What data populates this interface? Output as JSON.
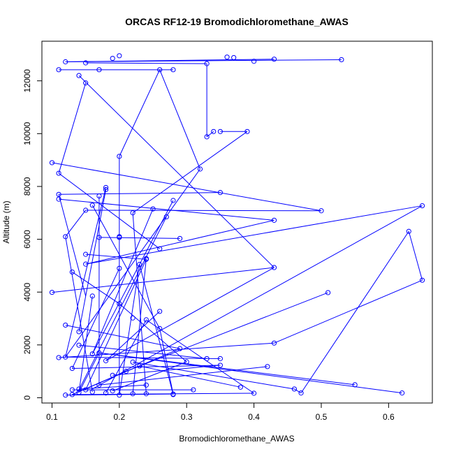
{
  "chart_data": {
    "type": "line",
    "title": "ORCAS RF12-19 Bromodichloromethane_AWAS",
    "xlabel": "Bromodichloromethane_AWAS",
    "ylabel": "Altitude (m)",
    "xlim": [
      0.085,
      0.665
    ],
    "ylim": [
      -200,
      13500
    ],
    "xticks": [
      0.1,
      0.2,
      0.3,
      0.4,
      0.5,
      0.6
    ],
    "xtick_labels": [
      "0.1",
      "0.2",
      "0.3",
      "0.4",
      "0.5",
      "0.6"
    ],
    "yticks": [
      0,
      2000,
      4000,
      6000,
      8000,
      10000,
      12000
    ],
    "ytick_labels": [
      "0",
      "2000",
      "4000",
      "6000",
      "8000",
      "10000",
      "12000"
    ],
    "grid": false,
    "series": [
      {
        "color": "#0000ff",
        "marker": "open-circle",
        "points": [
          [
            0.2,
            12950
          ],
          [
            0.36,
            12900
          ],
          [
            0.37,
            12880
          ],
          [
            0.19,
            12850
          ],
          [
            0.43,
            12820
          ],
          [
            0.53,
            12800
          ],
          [
            0.12,
            12720
          ],
          [
            0.4,
            12740
          ],
          [
            0.15,
            12680
          ],
          [
            0.33,
            12650
          ],
          [
            0.11,
            12420
          ],
          [
            0.17,
            12420
          ],
          [
            0.26,
            12420
          ],
          [
            0.28,
            12420
          ],
          [
            0.14,
            12200
          ],
          [
            0.15,
            11920
          ],
          [
            0.11,
            8500
          ],
          [
            0.43,
            4930
          ],
          [
            0.33,
            9880
          ],
          [
            0.34,
            10080
          ],
          [
            0.35,
            10080
          ],
          [
            0.39,
            10080
          ],
          [
            0.2,
            9140
          ],
          [
            0.2,
            6100
          ],
          [
            0.32,
            8660
          ],
          [
            0.26,
            5640
          ],
          [
            0.1,
            8900
          ],
          [
            0.5,
            7080
          ],
          [
            0.11,
            7700
          ],
          [
            0.35,
            7770
          ],
          [
            0.11,
            7520
          ],
          [
            0.43,
            6720
          ],
          [
            0.18,
            7960
          ],
          [
            0.18,
            7880
          ],
          [
            0.17,
            7640
          ],
          [
            0.16,
            7290
          ],
          [
            0.15,
            7100
          ],
          [
            0.22,
            7000
          ],
          [
            0.25,
            7150
          ],
          [
            0.28,
            7470
          ],
          [
            0.27,
            6850
          ],
          [
            0.17,
            6070
          ],
          [
            0.2,
            6070
          ],
          [
            0.29,
            6030
          ],
          [
            0.12,
            6100
          ],
          [
            0.65,
            7270
          ],
          [
            0.15,
            5060
          ],
          [
            0.63,
            6300
          ],
          [
            0.65,
            4450
          ],
          [
            0.43,
            2070
          ],
          [
            0.11,
            1520
          ],
          [
            0.15,
            5430
          ],
          [
            0.24,
            5240
          ],
          [
            0.24,
            5270
          ],
          [
            0.23,
            5050
          ],
          [
            0.2,
            4900
          ],
          [
            0.13,
            4760
          ],
          [
            0.1,
            3990
          ],
          [
            0.51,
            3980
          ],
          [
            0.16,
            3850
          ],
          [
            0.2,
            3560
          ],
          [
            0.26,
            3270
          ],
          [
            0.24,
            2950
          ],
          [
            0.22,
            3020
          ],
          [
            0.26,
            2620
          ],
          [
            0.12,
            2750
          ],
          [
            0.14,
            2500
          ],
          [
            0.29,
            1860
          ],
          [
            0.14,
            1990
          ],
          [
            0.16,
            1660
          ],
          [
            0.17,
            1700
          ],
          [
            0.12,
            1540
          ],
          [
            0.18,
            1400
          ],
          [
            0.33,
            1480
          ],
          [
            0.35,
            1480
          ],
          [
            0.3,
            1360
          ],
          [
            0.35,
            1230
          ],
          [
            0.42,
            1180
          ],
          [
            0.22,
            1350
          ],
          [
            0.23,
            1200
          ],
          [
            0.13,
            1110
          ],
          [
            0.21,
            1000
          ],
          [
            0.19,
            850
          ],
          [
            0.24,
            480
          ],
          [
            0.17,
            480
          ],
          [
            0.38,
            400
          ],
          [
            0.55,
            490
          ],
          [
            0.46,
            330
          ],
          [
            0.14,
            330
          ],
          [
            0.13,
            300
          ],
          [
            0.15,
            300
          ],
          [
            0.31,
            300
          ],
          [
            0.19,
            260
          ],
          [
            0.16,
            220
          ],
          [
            0.18,
            180
          ],
          [
            0.22,
            150
          ],
          [
            0.24,
            150
          ],
          [
            0.28,
            140
          ],
          [
            0.28,
            120
          ],
          [
            0.4,
            170
          ],
          [
            0.47,
            180
          ],
          [
            0.62,
            180
          ],
          [
            0.12,
            100
          ],
          [
            0.13,
            120
          ],
          [
            0.2,
            100
          ],
          [
            0.14,
            200
          ]
        ],
        "segments": [
          [
            0.53,
            12800,
            0.12,
            12720
          ],
          [
            0.12,
            12720,
            0.43,
            12820
          ],
          [
            0.15,
            12680,
            0.33,
            12650
          ],
          [
            0.11,
            12420,
            0.28,
            12420
          ],
          [
            0.33,
            12650,
            0.33,
            9880
          ],
          [
            0.33,
            9880,
            0.34,
            10080
          ],
          [
            0.35,
            10080,
            0.39,
            10080
          ],
          [
            0.39,
            10080,
            0.22,
            7000
          ],
          [
            0.14,
            12200,
            0.43,
            4930
          ],
          [
            0.15,
            11920,
            0.11,
            8500
          ],
          [
            0.11,
            8500,
            0.26,
            5640
          ],
          [
            0.26,
            12420,
            0.32,
            8660
          ],
          [
            0.32,
            8660,
            0.12,
            1540
          ],
          [
            0.2,
            9140,
            0.26,
            12420
          ],
          [
            0.2,
            9140,
            0.2,
            6100
          ],
          [
            0.1,
            8900,
            0.5,
            7080
          ],
          [
            0.5,
            7080,
            0.15,
            7100
          ],
          [
            0.11,
            7700,
            0.35,
            7770
          ],
          [
            0.11,
            7520,
            0.43,
            6720
          ],
          [
            0.43,
            6720,
            0.15,
            5060
          ],
          [
            0.11,
            7700,
            0.15,
            3850
          ],
          [
            0.18,
            7960,
            0.12,
            1540
          ],
          [
            0.18,
            7880,
            0.14,
            2500
          ],
          [
            0.17,
            7640,
            0.17,
            480
          ],
          [
            0.16,
            7290,
            0.26,
            2620
          ],
          [
            0.15,
            7100,
            0.12,
            6100
          ],
          [
            0.12,
            6100,
            0.16,
            220
          ],
          [
            0.17,
            6070,
            0.29,
            6030
          ],
          [
            0.22,
            7000,
            0.24,
            150
          ],
          [
            0.25,
            7150,
            0.16,
            1660
          ],
          [
            0.28,
            7470,
            0.16,
            1660
          ],
          [
            0.27,
            6850,
            0.14,
            300
          ],
          [
            0.2,
            6070,
            0.2,
            100
          ],
          [
            0.65,
            7270,
            0.15,
            5060
          ],
          [
            0.65,
            7270,
            0.16,
            330
          ],
          [
            0.63,
            6300,
            0.65,
            4450
          ],
          [
            0.63,
            6300,
            0.47,
            180
          ],
          [
            0.65,
            4450,
            0.43,
            2070
          ],
          [
            0.43,
            2070,
            0.11,
            1520
          ],
          [
            0.43,
            4930,
            0.1,
            3990
          ],
          [
            0.43,
            4930,
            0.18,
            1400
          ],
          [
            0.15,
            5430,
            0.24,
            5240
          ],
          [
            0.24,
            5240,
            0.15,
            300
          ],
          [
            0.23,
            5050,
            0.28,
            120
          ],
          [
            0.2,
            4900,
            0.13,
            1110
          ],
          [
            0.13,
            4760,
            0.2,
            3560
          ],
          [
            0.2,
            3560,
            0.3,
            1360
          ],
          [
            0.51,
            3980,
            0.21,
            1000
          ],
          [
            0.26,
            3270,
            0.18,
            1400
          ],
          [
            0.24,
            2950,
            0.4,
            170
          ],
          [
            0.26,
            2620,
            0.28,
            140
          ],
          [
            0.12,
            2750,
            0.29,
            1860
          ],
          [
            0.29,
            1860,
            0.13,
            120
          ],
          [
            0.14,
            1990,
            0.33,
            1480
          ],
          [
            0.35,
            1480,
            0.12,
            1540
          ],
          [
            0.35,
            1230,
            0.13,
            1110
          ],
          [
            0.42,
            1180,
            0.17,
            480
          ],
          [
            0.17,
            1700,
            0.62,
            180
          ],
          [
            0.17,
            1700,
            0.55,
            490
          ],
          [
            0.22,
            1350,
            0.46,
            330
          ],
          [
            0.46,
            330,
            0.47,
            180
          ],
          [
            0.23,
            1200,
            0.38,
            400
          ],
          [
            0.19,
            850,
            0.35,
            1230
          ],
          [
            0.24,
            480,
            0.14,
            330
          ],
          [
            0.31,
            300,
            0.13,
            300
          ],
          [
            0.13,
            120,
            0.4,
            170
          ],
          [
            0.12,
            100,
            0.28,
            140
          ],
          [
            0.21,
            1000,
            0.13,
            120
          ],
          [
            0.19,
            260,
            0.3,
            1360
          ],
          [
            0.18,
            180,
            0.24,
            2950
          ],
          [
            0.22,
            150,
            0.24,
            5270
          ],
          [
            0.2,
            100,
            0.23,
            5050
          ],
          [
            0.14,
            200,
            0.17,
            1700
          ],
          [
            0.16,
            3850,
            0.14,
            200
          ]
        ]
      }
    ]
  }
}
